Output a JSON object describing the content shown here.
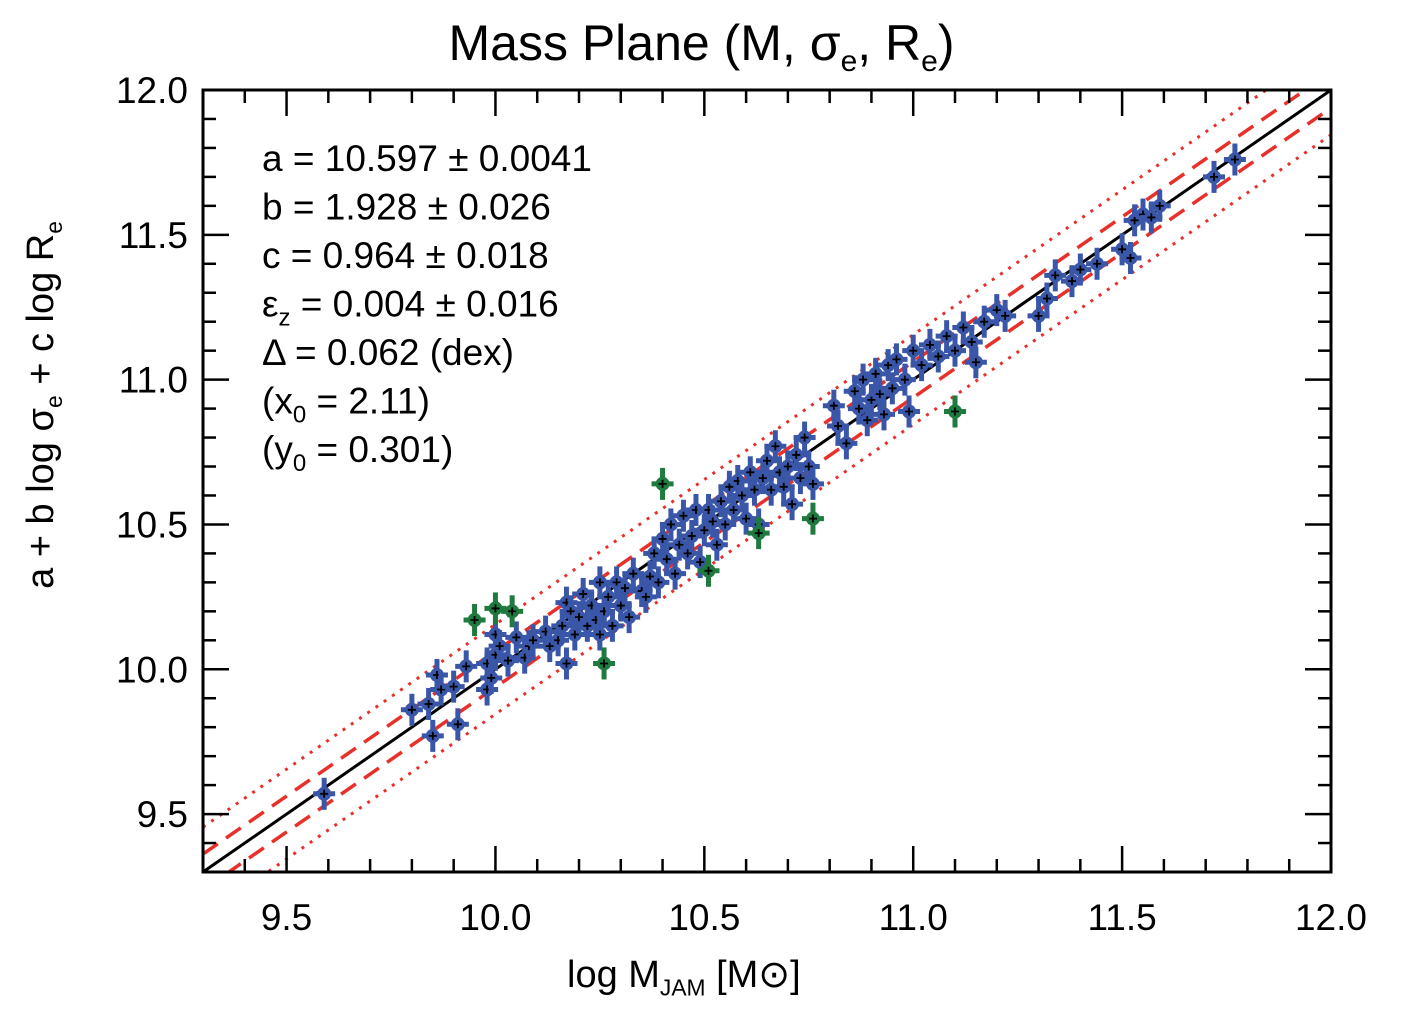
{
  "chart_data": {
    "type": "scatter",
    "title": {
      "main": "Mass Plane (M, ",
      "sym1": "σ",
      "sub1": "e",
      "mid": ", R",
      "sub2": "e",
      "end": ")"
    },
    "xlabel": {
      "pre": "log M",
      "sub": "JAM",
      "post": " [M",
      "sym": "⊙",
      "end": "]"
    },
    "ylabel": {
      "pre": "a + b log ",
      "sym": "σ",
      "sub1": "e",
      "mid": " + c log R",
      "sub2": "e"
    },
    "xlim": [
      9.3,
      12.0
    ],
    "ylim": [
      9.3,
      12.0
    ],
    "xticks": [
      "9.5",
      "10.0",
      "10.5",
      "11.0",
      "11.5",
      "12.0"
    ],
    "yticks": [
      "9.5",
      "10.0",
      "10.5",
      "11.0",
      "11.5",
      "12.0"
    ],
    "fit_stats": [
      {
        "pre": "a = 10.597 ± 0.0041",
        "sub": "",
        "post": ""
      },
      {
        "pre": "b = 1.928 ± 0.026",
        "sub": "",
        "post": ""
      },
      {
        "pre": "c = 0.964 ± 0.018",
        "sub": "",
        "post": ""
      },
      {
        "pre": "ε",
        "sub": "z",
        "post": " = 0.004 ± 0.016"
      },
      {
        "pre": "Δ = 0.062 (dex)",
        "sub": "",
        "post": ""
      },
      {
        "pre": "(x",
        "sub": "0",
        "post": " = 2.11)"
      },
      {
        "pre": "(y",
        "sub": "0",
        "post": " = 0.301)"
      }
    ],
    "lines": {
      "one_to_one": {
        "slope": 1,
        "offset": 0,
        "color": "#000000",
        "style": "solid"
      },
      "rms_1": {
        "offsets": [
          -0.062,
          0.062
        ],
        "color": "#e8302a",
        "style": "dashed"
      },
      "rms_2_5": {
        "offsets": [
          -0.155,
          0.155
        ],
        "color": "#e8302a",
        "style": "dotted"
      }
    },
    "colors": {
      "inlier": "#3a56a8",
      "outlier": "#1e7a3e",
      "center": "#000000"
    },
    "series": [
      {
        "values": [
          [
            9.59,
            9.57
          ],
          [
            9.8,
            9.86
          ],
          [
            9.84,
            9.88
          ],
          [
            9.85,
            9.77
          ],
          [
            9.86,
            9.98
          ],
          [
            9.87,
            9.93
          ],
          [
            9.9,
            9.94
          ],
          [
            9.91,
            9.81
          ],
          [
            9.93,
            10.01
          ],
          [
            9.98,
            9.93
          ],
          [
            9.98,
            10.02
          ],
          [
            9.99,
            9.97
          ],
          [
            10.0,
            10.05
          ],
          [
            10.0,
            10.12
          ],
          [
            10.01,
            10.08
          ],
          [
            10.03,
            10.03
          ],
          [
            10.05,
            10.11
          ],
          [
            10.07,
            10.04
          ],
          [
            10.08,
            10.08
          ],
          [
            10.09,
            10.1
          ],
          [
            10.12,
            10.13
          ],
          [
            10.13,
            10.08
          ],
          [
            10.15,
            10.1
          ],
          [
            10.16,
            10.15
          ],
          [
            10.17,
            10.02
          ],
          [
            10.17,
            10.23
          ],
          [
            10.18,
            10.2
          ],
          [
            10.19,
            10.12
          ],
          [
            10.2,
            10.18
          ],
          [
            10.21,
            10.26
          ],
          [
            10.22,
            10.15
          ],
          [
            10.23,
            10.22
          ],
          [
            10.24,
            10.17
          ],
          [
            10.25,
            10.3
          ],
          [
            10.25,
            10.12
          ],
          [
            10.26,
            10.2
          ],
          [
            10.27,
            10.25
          ],
          [
            10.28,
            10.15
          ],
          [
            10.29,
            10.3
          ],
          [
            10.3,
            10.22
          ],
          [
            10.31,
            10.28
          ],
          [
            10.32,
            10.18
          ],
          [
            10.33,
            10.33
          ],
          [
            10.35,
            10.27
          ],
          [
            10.36,
            10.25
          ],
          [
            10.37,
            10.32
          ],
          [
            10.38,
            10.4
          ],
          [
            10.39,
            10.3
          ],
          [
            10.4,
            10.45
          ],
          [
            10.41,
            10.38
          ],
          [
            10.42,
            10.5
          ],
          [
            10.43,
            10.33
          ],
          [
            10.44,
            10.43
          ],
          [
            10.45,
            10.53
          ],
          [
            10.46,
            10.4
          ],
          [
            10.47,
            10.46
          ],
          [
            10.48,
            10.55
          ],
          [
            10.49,
            10.37
          ],
          [
            10.5,
            10.48
          ],
          [
            10.51,
            10.55
          ],
          [
            10.52,
            10.51
          ],
          [
            10.53,
            10.43
          ],
          [
            10.54,
            10.58
          ],
          [
            10.55,
            10.5
          ],
          [
            10.56,
            10.63
          ],
          [
            10.57,
            10.55
          ],
          [
            10.58,
            10.65
          ],
          [
            10.59,
            10.6
          ],
          [
            10.6,
            10.52
          ],
          [
            10.61,
            10.68
          ],
          [
            10.62,
            10.62
          ],
          [
            10.63,
            10.5
          ],
          [
            10.64,
            10.66
          ],
          [
            10.65,
            10.72
          ],
          [
            10.66,
            10.62
          ],
          [
            10.67,
            10.77
          ],
          [
            10.68,
            10.68
          ],
          [
            10.69,
            10.63
          ],
          [
            10.7,
            10.7
          ],
          [
            10.71,
            10.57
          ],
          [
            10.72,
            10.74
          ],
          [
            10.73,
            10.66
          ],
          [
            10.74,
            10.8
          ],
          [
            10.75,
            10.7
          ],
          [
            10.76,
            10.64
          ],
          [
            10.81,
            10.91
          ],
          [
            10.82,
            10.84
          ],
          [
            10.84,
            10.78
          ],
          [
            10.86,
            10.96
          ],
          [
            10.87,
            10.9
          ],
          [
            10.88,
            11.0
          ],
          [
            10.89,
            10.86
          ],
          [
            10.9,
            10.93
          ],
          [
            10.91,
            11.02
          ],
          [
            10.92,
            10.95
          ],
          [
            10.93,
            10.88
          ],
          [
            10.94,
            11.05
          ],
          [
            10.95,
            10.97
          ],
          [
            10.96,
            11.07
          ],
          [
            10.98,
            11.0
          ],
          [
            10.99,
            10.89
          ],
          [
            11.0,
            11.1
          ],
          [
            11.02,
            11.05
          ],
          [
            11.04,
            11.12
          ],
          [
            11.06,
            11.08
          ],
          [
            11.08,
            11.15
          ],
          [
            11.1,
            11.1
          ],
          [
            11.12,
            11.18
          ],
          [
            11.14,
            11.13
          ],
          [
            11.15,
            11.06
          ],
          [
            11.17,
            11.2
          ],
          [
            11.2,
            11.24
          ],
          [
            11.22,
            11.22
          ],
          [
            11.3,
            11.22
          ],
          [
            11.32,
            11.28
          ],
          [
            11.34,
            11.36
          ],
          [
            11.38,
            11.34
          ],
          [
            11.4,
            11.38
          ],
          [
            11.44,
            11.4
          ],
          [
            11.5,
            11.45
          ],
          [
            11.52,
            11.42
          ],
          [
            11.53,
            11.55
          ],
          [
            11.55,
            11.57
          ],
          [
            11.57,
            11.56
          ],
          [
            11.59,
            11.6
          ],
          [
            11.72,
            11.7
          ],
          [
            11.77,
            11.76
          ]
        ]
      },
      {
        "values": [
          [
            9.95,
            10.17
          ],
          [
            10.0,
            10.21
          ],
          [
            10.04,
            10.2
          ],
          [
            10.26,
            10.02
          ],
          [
            10.4,
            10.64
          ],
          [
            10.51,
            10.34
          ],
          [
            10.63,
            10.47
          ],
          [
            10.76,
            10.52
          ],
          [
            11.1,
            10.89
          ]
        ]
      }
    ]
  }
}
